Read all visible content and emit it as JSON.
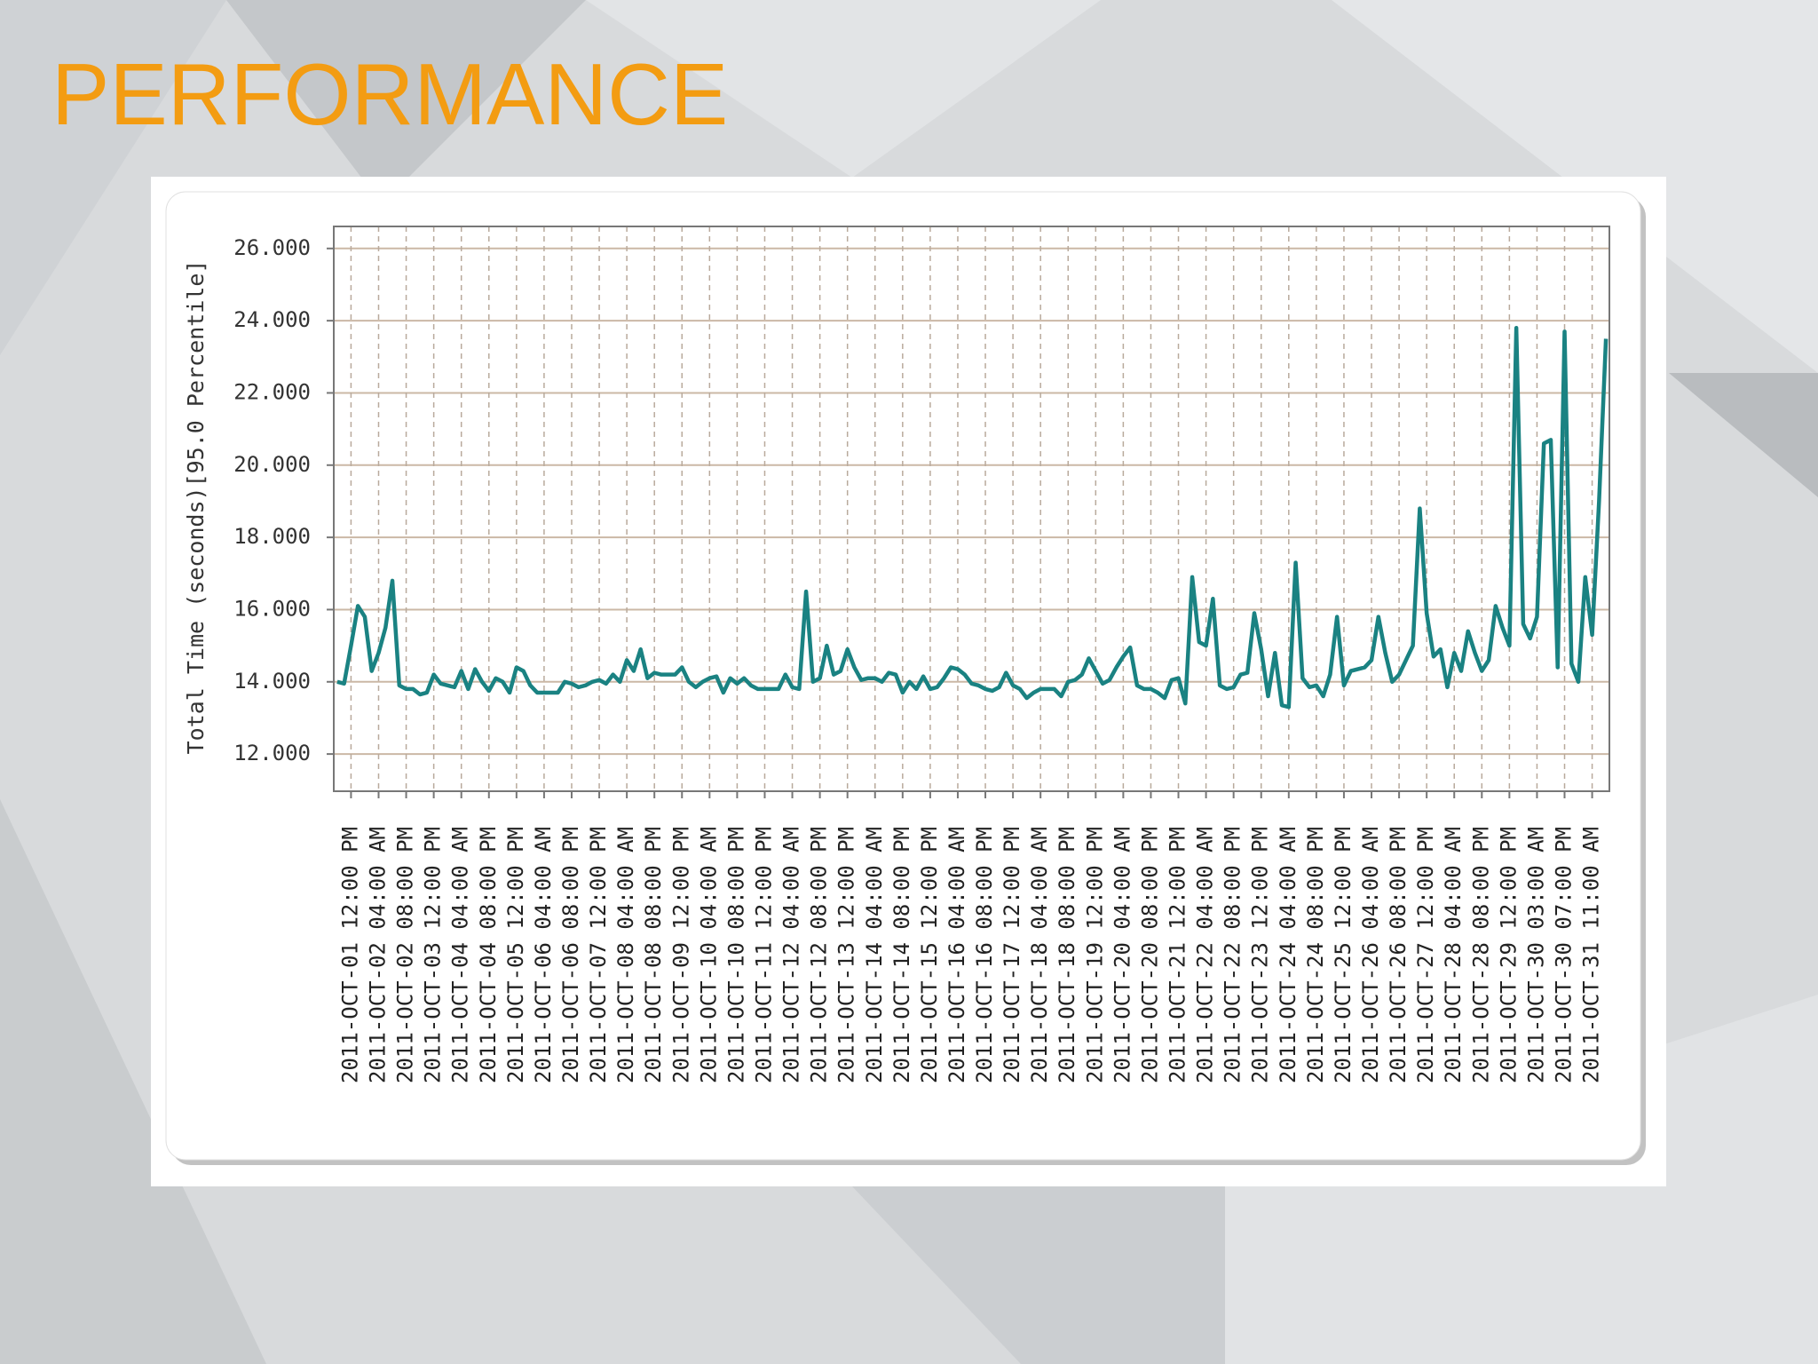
{
  "chart_data": {
    "type": "line",
    "title": "PERFORMANCE",
    "ylabel": "Total Time (seconds)[95.0 Percentile]",
    "color": "#1a8282",
    "grid": true,
    "ylim": [
      10.97,
      26.61
    ],
    "yticks": [
      {
        "value": 12,
        "label": "12.000"
      },
      {
        "value": 14,
        "label": "14.000"
      },
      {
        "value": 16,
        "label": "16.000"
      },
      {
        "value": 18,
        "label": "18.000"
      },
      {
        "value": 20,
        "label": "20.000"
      },
      {
        "value": 22,
        "label": "22.000"
      },
      {
        "value": 24,
        "label": "24.000"
      },
      {
        "value": 26,
        "label": "26.000"
      }
    ],
    "categories": [
      null,
      null,
      "2011-OCT-01 12:00 PM",
      null,
      null,
      null,
      "2011-OCT-02 04:00 AM",
      null,
      null,
      null,
      "2011-OCT-02 08:00 PM",
      null,
      null,
      null,
      "2011-OCT-03 12:00 PM",
      null,
      null,
      null,
      "2011-OCT-04 04:00 AM",
      null,
      null,
      null,
      "2011-OCT-04 08:00 PM",
      null,
      null,
      null,
      "2011-OCT-05 12:00 PM",
      null,
      null,
      null,
      "2011-OCT-06 04:00 AM",
      null,
      null,
      null,
      "2011-OCT-06 08:00 PM",
      null,
      null,
      null,
      "2011-OCT-07 12:00 PM",
      null,
      null,
      null,
      "2011-OCT-08 04:00 AM",
      null,
      null,
      null,
      "2011-OCT-08 08:00 PM",
      null,
      null,
      null,
      "2011-OCT-09 12:00 PM",
      null,
      null,
      null,
      "2011-OCT-10 04:00 AM",
      null,
      null,
      null,
      "2011-OCT-10 08:00 PM",
      null,
      null,
      null,
      "2011-OCT-11 12:00 PM",
      null,
      null,
      null,
      "2011-OCT-12 04:00 AM",
      null,
      null,
      null,
      "2011-OCT-12 08:00 PM",
      null,
      null,
      null,
      "2011-OCT-13 12:00 PM",
      null,
      null,
      null,
      "2011-OCT-14 04:00 AM",
      null,
      null,
      null,
      "2011-OCT-14 08:00 PM",
      null,
      null,
      null,
      "2011-OCT-15 12:00 PM",
      null,
      null,
      null,
      "2011-OCT-16 04:00 AM",
      null,
      null,
      null,
      "2011-OCT-16 08:00 PM",
      null,
      null,
      null,
      "2011-OCT-17 12:00 PM",
      null,
      null,
      null,
      "2011-OCT-18 04:00 AM",
      null,
      null,
      null,
      "2011-OCT-18 08:00 PM",
      null,
      null,
      null,
      "2011-OCT-19 12:00 PM",
      null,
      null,
      null,
      "2011-OCT-20 04:00 AM",
      null,
      null,
      null,
      "2011-OCT-20 08:00 PM",
      null,
      null,
      null,
      "2011-OCT-21 12:00 PM",
      null,
      null,
      null,
      "2011-OCT-22 04:00 AM",
      null,
      null,
      null,
      "2011-OCT-22 08:00 PM",
      null,
      null,
      null,
      "2011-OCT-23 12:00 PM",
      null,
      null,
      null,
      "2011-OCT-24 04:00 AM",
      null,
      null,
      null,
      "2011-OCT-24 08:00 PM",
      null,
      null,
      null,
      "2011-OCT-25 12:00 PM",
      null,
      null,
      null,
      "2011-OCT-26 04:00 AM",
      null,
      null,
      null,
      "2011-OCT-26 08:00 PM",
      null,
      null,
      null,
      "2011-OCT-27 12:00 PM",
      null,
      null,
      null,
      "2011-OCT-28 04:00 AM",
      null,
      null,
      null,
      "2011-OCT-28 08:00 PM",
      null,
      null,
      null,
      "2011-OCT-29 12:00 PM",
      null,
      null,
      null,
      "2011-OCT-30 03:00 AM",
      null,
      null,
      null,
      "2011-OCT-30 07:00 PM",
      null,
      null,
      null,
      "2011-OCT-31 11:00 AM",
      null,
      null
    ],
    "values": [
      14.0,
      13.95,
      15.0,
      16.1,
      15.8,
      14.3,
      14.8,
      15.5,
      16.8,
      13.9,
      13.8,
      13.8,
      13.65,
      13.7,
      14.2,
      13.95,
      13.9,
      13.85,
      14.3,
      13.8,
      14.35,
      14.0,
      13.75,
      14.1,
      14.0,
      13.7,
      14.4,
      14.3,
      13.9,
      13.7,
      13.7,
      13.7,
      13.7,
      14.0,
      13.95,
      13.85,
      13.9,
      14.0,
      14.05,
      13.95,
      14.2,
      14.0,
      14.6,
      14.3,
      14.9,
      14.1,
      14.25,
      14.2,
      14.2,
      14.2,
      14.4,
      14.0,
      13.85,
      14.0,
      14.1,
      14.15,
      13.7,
      14.1,
      13.95,
      14.1,
      13.9,
      13.8,
      13.8,
      13.8,
      13.8,
      14.2,
      13.85,
      13.8,
      16.5,
      14.0,
      14.1,
      15.0,
      14.2,
      14.3,
      14.9,
      14.4,
      14.05,
      14.1,
      14.1,
      14.0,
      14.25,
      14.2,
      13.7,
      14.0,
      13.8,
      14.15,
      13.8,
      13.85,
      14.1,
      14.4,
      14.35,
      14.2,
      13.95,
      13.9,
      13.8,
      13.75,
      13.85,
      14.25,
      13.9,
      13.8,
      13.55,
      13.7,
      13.8,
      13.8,
      13.8,
      13.6,
      14.0,
      14.05,
      14.2,
      14.65,
      14.3,
      13.95,
      14.05,
      14.4,
      14.7,
      14.95,
      13.9,
      13.8,
      13.8,
      13.7,
      13.55,
      14.05,
      14.1,
      13.4,
      16.9,
      15.1,
      15.0,
      16.3,
      13.9,
      13.8,
      13.85,
      14.2,
      14.25,
      15.9,
      14.9,
      13.6,
      14.8,
      13.35,
      13.3,
      17.3,
      14.1,
      13.85,
      13.9,
      13.6,
      14.2,
      15.8,
      13.9,
      14.3,
      14.35,
      14.4,
      14.6,
      15.8,
      14.8,
      14.0,
      14.2,
      14.6,
      15.0,
      18.8,
      15.9,
      14.7,
      14.9,
      13.85,
      14.8,
      14.3,
      15.4,
      14.8,
      14.3,
      14.6,
      16.1,
      15.5,
      15.0,
      23.8,
      15.6,
      15.2,
      15.8,
      20.6,
      20.7,
      14.4,
      23.7,
      14.5,
      14.0,
      16.9,
      15.3,
      19.0,
      23.5
    ]
  }
}
